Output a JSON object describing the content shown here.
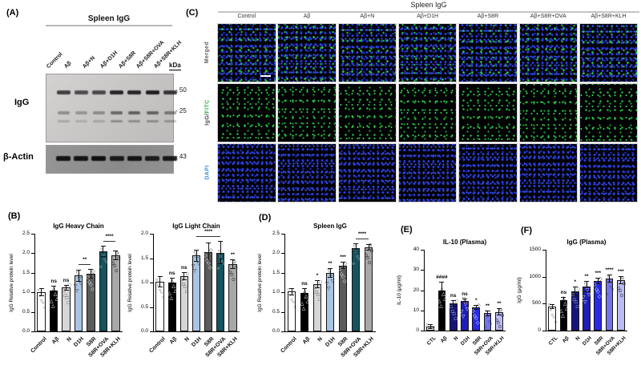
{
  "panels": {
    "a": {
      "label": "(A)",
      "title": "Spleen IgG",
      "kda": "kDa",
      "lanes": [
        "Control",
        "Aβ",
        "Aβ+N",
        "Aβ+D1H",
        "Aβ+S8R",
        "Aβ+S8R+OVA",
        "Aβ+S8R+KLH"
      ],
      "igg_label": "IgG",
      "actin_label": "β-Actin",
      "marker_50": "- 50",
      "marker_25": "- 25",
      "marker_43": "- 43",
      "igg_bands": {
        "row50": [
          0.8,
          0.72,
          0.75,
          0.95,
          0.95,
          1.0,
          0.85
        ],
        "row25": [
          0.35,
          0.3,
          0.35,
          0.55,
          0.6,
          0.58,
          0.45
        ],
        "row_low": [
          0.2,
          0.16,
          0.2,
          0.33,
          0.32,
          0.32,
          0.28
        ]
      },
      "actin_bands": [
        0.95,
        0.95,
        0.98,
        0.9,
        0.95,
        0.88,
        0.9
      ]
    },
    "b": {
      "label": "(B)"
    },
    "c": {
      "label": "(C)",
      "title": "Spleen IgG",
      "columns": [
        "Control",
        "Aβ",
        "Aβ+N",
        "Aβ+D1H",
        "Aβ+S8R",
        "Aβ+S8R+OVA",
        "Aβ+S8R+KLH"
      ],
      "rows": [
        {
          "key": "merged",
          "parts": [
            {
              "text": "Merged",
              "color": "#5f5f5f"
            }
          ]
        },
        {
          "key": "fitc",
          "parts": [
            {
              "text": "IgG/",
              "color": "#4a4a4a"
            },
            {
              "text": "FITC",
              "color": "#2db34a"
            }
          ]
        },
        {
          "key": "dapi",
          "parts": [
            {
              "text": "DAPI",
              "color": "#3f8fd2"
            }
          ]
        }
      ]
    },
    "d": {
      "label": "(D)"
    },
    "e": {
      "label": "(E)"
    },
    "f": {
      "label": "(F)"
    }
  },
  "chart_data": [
    {
      "id": "igg_heavy_chain",
      "type": "bar",
      "title": "IgG Heavy Chain",
      "ylabel": "IgG Relative protein level",
      "ylim": [
        0,
        2.5
      ],
      "yticks": [
        "0.0",
        "0.5",
        "1.0",
        "1.5",
        "2.0",
        "2.5"
      ],
      "categories": [
        "Control",
        "Aβ",
        "N",
        "D1H",
        "S8R",
        "S8R+OVA",
        "S8R+KLH"
      ],
      "values": [
        1.0,
        1.04,
        1.12,
        1.43,
        1.47,
        2.05,
        1.95
      ],
      "errors": [
        0.08,
        0.1,
        0.05,
        0.13,
        0.1,
        0.12,
        0.1
      ],
      "colors": [
        "#ffffff",
        "#000000",
        "#d6d6d6",
        "#a9c4e4",
        "#5b5b5b",
        "#14535f",
        "#a8a8a8"
      ],
      "annotations": [
        "",
        "ns",
        "ns",
        "",
        "",
        "",
        ""
      ],
      "brackets": [
        {
          "from": 3,
          "to": 4,
          "label": "**"
        },
        {
          "from": 5,
          "to": 6,
          "label": "****"
        }
      ],
      "point_shapes": [
        "○",
        "△",
        "□",
        "▽",
        "◇",
        "○",
        "⊙"
      ]
    },
    {
      "id": "igg_light_chain",
      "type": "bar",
      "title": "IgG Light Chain",
      "ylabel": "IgG Relative protein level",
      "ylim": [
        0,
        2.0
      ],
      "yticks": [
        "0.0",
        "0.5",
        "1.0",
        "1.5",
        "2.0"
      ],
      "categories": [
        "Control",
        "Aβ",
        "N",
        "D1H",
        "S8R",
        "S8R+OVA",
        "S8R+KLH"
      ],
      "values": [
        1.02,
        1.0,
        1.13,
        1.55,
        1.62,
        1.61,
        1.38
      ],
      "errors": [
        0.1,
        0.08,
        0.06,
        0.1,
        0.18,
        0.22,
        0.08
      ],
      "colors": [
        "#ffffff",
        "#000000",
        "#d6d6d6",
        "#a9c4e4",
        "#5b5b5b",
        "#14535f",
        "#a8a8a8"
      ],
      "annotations": [
        "",
        "ns",
        "ns",
        "",
        "",
        "",
        "**"
      ],
      "brackets": [
        {
          "from": 3,
          "to": 5,
          "label": "****"
        }
      ],
      "point_shapes": [
        "○",
        "△",
        "□",
        "▽",
        "◇",
        "○",
        "⊙"
      ]
    },
    {
      "id": "spleen_igg",
      "type": "bar",
      "title": "Spleen IgG",
      "ylabel": "IgG Relative protein level",
      "ylim": [
        0,
        2.5
      ],
      "yticks": [
        "0.0",
        "0.5",
        "1.0",
        "1.5",
        "2.0",
        "2.5"
      ],
      "categories": [
        "Control",
        "Aβ",
        "N",
        "D1H",
        "S8R",
        "S8R+OVA",
        "S8R+KLH"
      ],
      "values": [
        1.02,
        0.99,
        1.21,
        1.49,
        1.69,
        2.14,
        2.16
      ],
      "errors": [
        0.07,
        0.1,
        0.08,
        0.1,
        0.08,
        0.1,
        0.06
      ],
      "colors": [
        "#ffffff",
        "#000000",
        "#d6d6d6",
        "#a9c4e4",
        "#5b5b5b",
        "#14535f",
        "#a8a8a8"
      ],
      "annotations": [
        "",
        "ns",
        "*",
        "**",
        "***",
        "",
        ""
      ],
      "brackets": [
        {
          "from": 5,
          "to": 6,
          "label": "****"
        }
      ],
      "point_shapes": [
        "○",
        "△",
        "□",
        "▽",
        "◇",
        "○",
        "⊙"
      ]
    },
    {
      "id": "il10_plasma",
      "type": "bar",
      "title": "IL-10 (Plasma)",
      "ylabel": "IL-10 (μg/ml)",
      "ylim": [
        0,
        40
      ],
      "yticks": [
        "0",
        "10",
        "20",
        "30",
        "40"
      ],
      "categories": [
        "CTL",
        "Aβ",
        "N",
        "D1H",
        "S8R",
        "S8R+OVA",
        "S8R+KLH"
      ],
      "values": [
        1.8,
        19.8,
        13.6,
        14.6,
        11.6,
        8.6,
        9.3
      ],
      "errors": [
        0.8,
        3.8,
        1.2,
        0.9,
        0.8,
        0.9,
        1.5
      ],
      "colors": [
        "#ffffff",
        "#000000",
        "#16167a",
        "#1e1eb8",
        "#2929e6",
        "#7474ec",
        "#bcbcf4"
      ],
      "annotations": [
        "",
        "####",
        "ns",
        "ns",
        "*",
        "**",
        "**"
      ],
      "brackets": [],
      "point_shapes": [
        "○",
        "△",
        "□",
        "▽",
        "◇",
        "○",
        "⊙"
      ]
    },
    {
      "id": "igg_plasma",
      "type": "bar",
      "title": "IgG (Plasma)",
      "ylabel": "IgG (μg/ml)",
      "ylim": [
        0,
        1500
      ],
      "yticks": [
        "0",
        "500",
        "1000",
        "1500"
      ],
      "categories": [
        "CTL",
        "Aβ",
        "N",
        "D1H",
        "S8R",
        "S8R+OVA",
        "S8R+KLH"
      ],
      "values": [
        450,
        560,
        730,
        820,
        920,
        970,
        930
      ],
      "errors": [
        30,
        45,
        70,
        90,
        40,
        60,
        60
      ],
      "colors": [
        "#ffffff",
        "#000000",
        "#16167a",
        "#1e1eb8",
        "#2929e6",
        "#7474ec",
        "#bcbcf4"
      ],
      "annotations": [
        "",
        "ns",
        "*",
        "**",
        "***",
        "****",
        "***"
      ],
      "brackets": [],
      "point_shapes": [
        "○",
        "△",
        "□",
        "▽",
        "◇",
        "○",
        "⊙"
      ]
    }
  ]
}
